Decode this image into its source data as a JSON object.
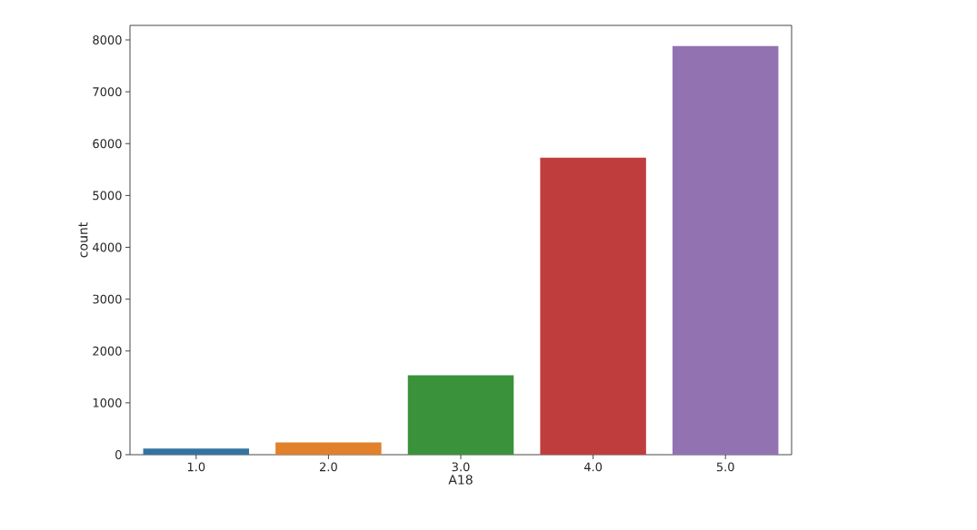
{
  "chart_data": {
    "type": "bar",
    "xlabel": "A18",
    "ylabel": "count",
    "categories": [
      "1.0",
      "2.0",
      "3.0",
      "4.0",
      "5.0"
    ],
    "values": [
      120,
      237,
      1530,
      5730,
      7880
    ],
    "colors": [
      "#3274a1",
      "#e1812c",
      "#3a923a",
      "#c03d3e",
      "#9372b2"
    ],
    "ylim": [
      0,
      8280
    ],
    "yticks": [
      0,
      1000,
      2000,
      3000,
      4000,
      5000,
      6000,
      7000,
      8000
    ],
    "grid": false
  }
}
